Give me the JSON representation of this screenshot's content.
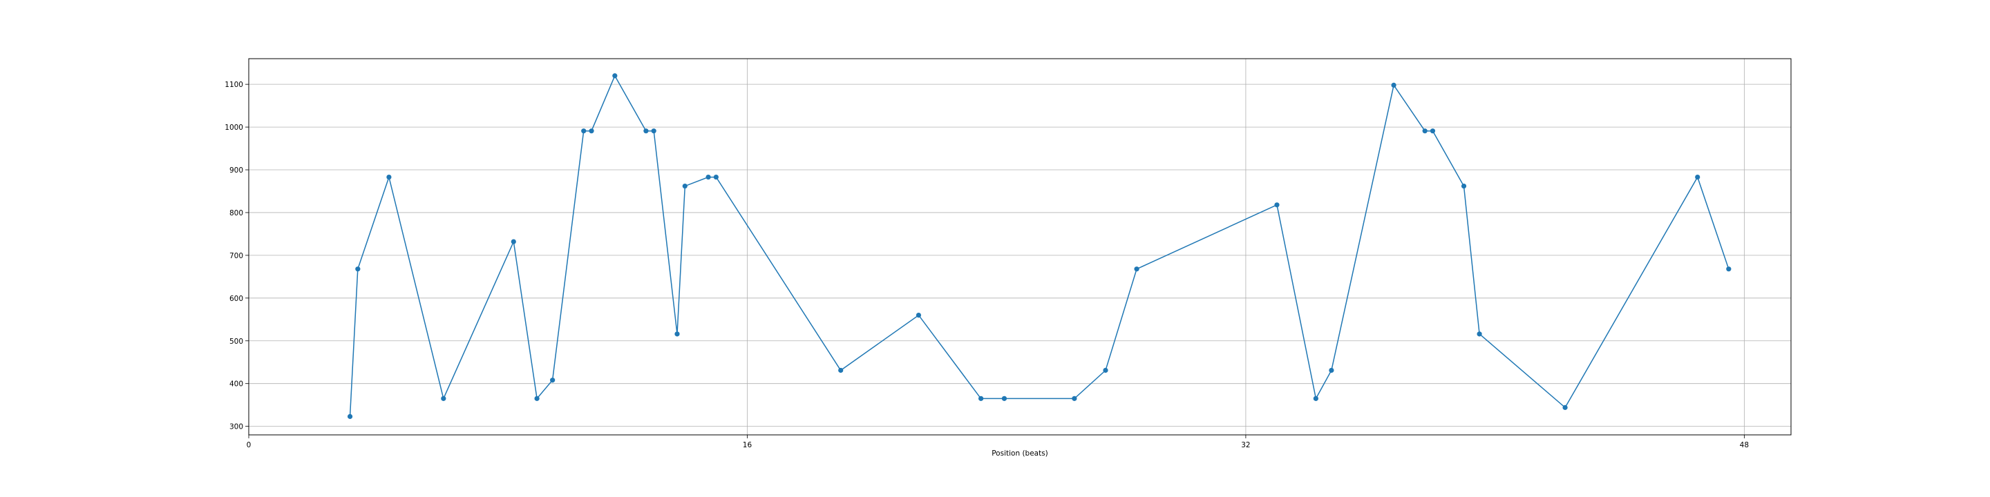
{
  "chart_data": {
    "type": "line",
    "title": "",
    "xlabel": "Position (beats)",
    "ylabel": "",
    "xlim": [
      0,
      49.5
    ],
    "ylim": [
      280,
      1160
    ],
    "xticks": [
      0,
      16,
      32,
      48
    ],
    "yticks": [
      300,
      400,
      500,
      600,
      700,
      800,
      900,
      1000,
      1100
    ],
    "grid": true,
    "legend": "none",
    "series": [
      {
        "color": "#1f77b4",
        "marker": "circle",
        "x": [
          3.25,
          3.5,
          4.5,
          6.25,
          8.5,
          9.25,
          9.75,
          10.75,
          11.0,
          11.75,
          12.75,
          13.0,
          13.75,
          14.0,
          14.75,
          15.0,
          19.0,
          21.5,
          23.5,
          24.25,
          26.5,
          27.5,
          28.5,
          33.0,
          34.25,
          34.75,
          36.75,
          37.75,
          38.0,
          39.0,
          39.5,
          42.25,
          46.5,
          47.5
        ],
        "y": [
          323,
          668,
          883,
          365,
          732,
          365,
          408,
          991,
          991,
          1120,
          991,
          991,
          516,
          862,
          883,
          883,
          431,
          560,
          365,
          365,
          365,
          431,
          668,
          818,
          365,
          431,
          1098,
          991,
          991,
          862,
          516,
          344,
          883,
          668
        ]
      }
    ]
  }
}
